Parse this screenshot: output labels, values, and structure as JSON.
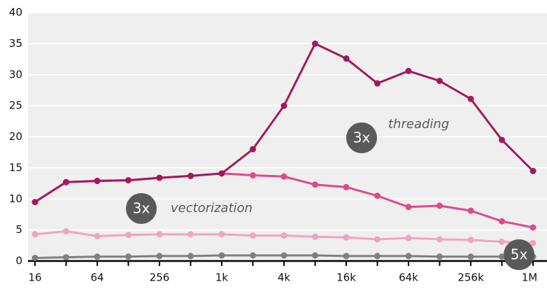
{
  "chart_data": {
    "type": "line",
    "categories": [
      "16",
      null,
      "64",
      null,
      "256",
      null,
      "1k",
      null,
      "4k",
      null,
      "16k",
      null,
      "64k",
      null,
      "256k",
      null,
      "1M"
    ],
    "series": [
      {
        "color": "#a3195b",
        "values": [
          9.5,
          12.7,
          12.9,
          13.0,
          13.4,
          13.7,
          14.1,
          18.0,
          25.0,
          35.0,
          32.6,
          28.6,
          30.6,
          29.0,
          26.1,
          19.5,
          14.5
        ]
      },
      {
        "color": "#e0488b",
        "values": [
          9.5,
          12.7,
          12.9,
          13.0,
          13.4,
          13.7,
          14.1,
          13.8,
          13.6,
          12.3,
          11.9,
          10.5,
          8.7,
          8.9,
          8.1,
          6.4,
          5.4
        ]
      },
      {
        "color": "#f2a2c2",
        "values": [
          4.3,
          4.8,
          4.0,
          4.2,
          4.3,
          4.3,
          4.3,
          4.1,
          4.1,
          3.9,
          3.8,
          3.5,
          3.7,
          3.5,
          3.4,
          3.1,
          2.9
        ]
      },
      {
        "color": "#7f7f7f",
        "values": [
          0.5,
          0.6,
          0.7,
          0.7,
          0.8,
          0.8,
          0.9,
          0.9,
          0.9,
          0.9,
          0.8,
          0.8,
          0.8,
          0.7,
          0.7,
          0.7,
          0.7
        ]
      }
    ],
    "ylim": [
      0,
      40
    ],
    "yticks": [
      0,
      5,
      10,
      15,
      20,
      25,
      30,
      35,
      40
    ],
    "grid": true,
    "annotations": [
      {
        "badge": "3x",
        "label": "threading"
      },
      {
        "badge": "3x",
        "label": "vectorization"
      },
      {
        "badge": "5x"
      }
    ]
  }
}
